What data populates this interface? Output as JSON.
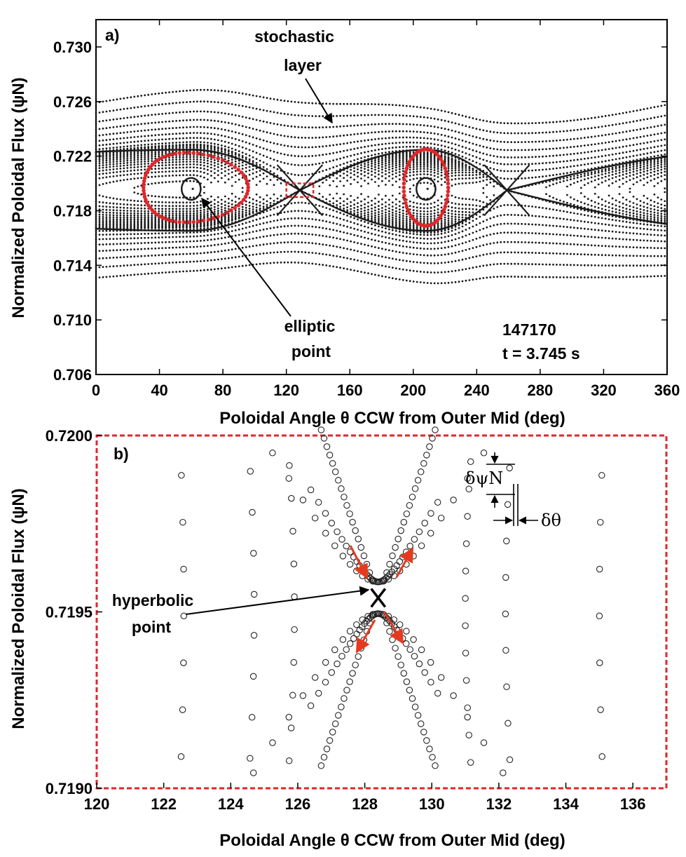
{
  "colors": {
    "points": "#1a1a1a",
    "island": "#e0262a",
    "box": "#e0262a",
    "arrows": "#e63a1f"
  },
  "chart_data": [
    {
      "type": "scatter",
      "panel_label": "a)",
      "xlabel": "Poloidal Angle θ CCW from Outer Mid (deg)",
      "ylabel": "Normalized Poloidal Flux (ψN)",
      "xlim": [
        0,
        360
      ],
      "ylim": [
        0.706,
        0.732
      ],
      "xticks": [
        "0",
        "40",
        "80",
        "120",
        "160",
        "200",
        "240",
        "280",
        "320",
        "360"
      ],
      "yticks": [
        "0.706",
        "0.710",
        "0.714",
        "0.718",
        "0.722",
        "0.726",
        "0.730"
      ],
      "islands": [
        {
          "center_deg": 60,
          "o_point_flux": 0.7196
        },
        {
          "center_deg": 208,
          "o_point_flux": 0.7196
        }
      ],
      "x_points_deg": [
        128.5,
        259
      ],
      "x_point_flux": 0.7195,
      "red_orbits": [
        {
          "center_deg": 57,
          "half_width_deg": 33,
          "half_height_flux": 0.00255
        },
        {
          "center_deg": 208,
          "half_width_deg": 14,
          "half_height_flux": 0.0028
        }
      ],
      "zoom_box": {
        "x": [
          120,
          137
        ],
        "y": [
          0.719,
          0.72
        ]
      },
      "annotations": {
        "stochastic": [
          "stochastic",
          "layer"
        ],
        "elliptic": [
          "elliptic",
          "point"
        ],
        "shot": "147170",
        "time": "t = 3.745 s"
      }
    },
    {
      "type": "scatter",
      "panel_label": "b)",
      "xlabel": "Poloidal Angle θ CCW from Outer Mid (deg)",
      "ylabel": "Normalized Poloidal Flux (ψN)",
      "xlim": [
        120,
        137
      ],
      "ylim": [
        0.719,
        0.72
      ],
      "xticks": [
        "120",
        "122",
        "124",
        "126",
        "128",
        "130",
        "132",
        "134",
        "136"
      ],
      "yticks": [
        "0.7190",
        "0.7195",
        "0.7200"
      ],
      "hyperbolic_point": {
        "x": 128.4,
        "y": 0.71954
      },
      "annotations": {
        "hyperbolic": [
          "hyperbolic",
          "point"
        ],
        "dpsi": "δψN",
        "dtheta": "δθ"
      }
    }
  ]
}
